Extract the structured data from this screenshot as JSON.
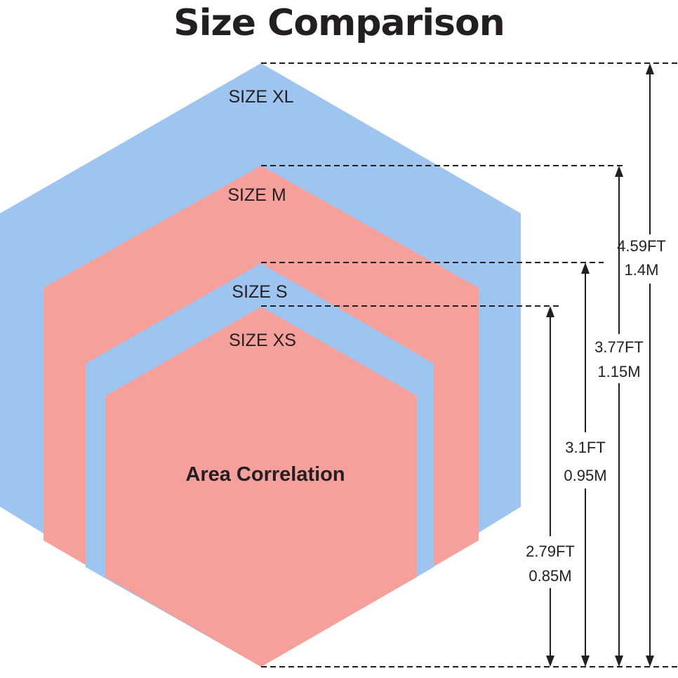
{
  "title": "Size Comparison",
  "center_label": "Area Correlation",
  "colors": {
    "blue": "#9ec5ef",
    "red": "#f5a09b",
    "ink": "#231f20"
  },
  "sizes": [
    {
      "label": "SIZE XL",
      "height_ft": "4.59FT",
      "height_m": "1.4M",
      "color": "blue"
    },
    {
      "label": "SIZE M",
      "height_ft": "3.77FT",
      "height_m": "1.15M",
      "color": "red"
    },
    {
      "label": "SIZE S",
      "height_ft": "3.1FT",
      "height_m": "0.95M",
      "color": "blue"
    },
    {
      "label": "SIZE XS",
      "height_ft": "2.79FT",
      "height_m": "0.85M",
      "color": "red"
    }
  ]
}
